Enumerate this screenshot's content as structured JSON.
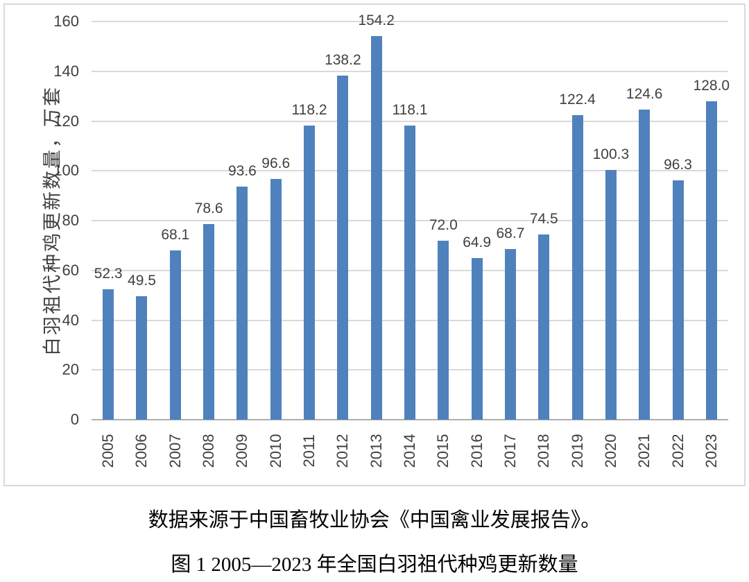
{
  "captions": {
    "source": "数据来源于中国畜牧业协会《中国禽业发展报告》。",
    "figure": "图 1 2005—2023 年全国白羽祖代种鸡更新数量"
  },
  "colors": {
    "bar": "#4F81BD",
    "gridline": "#D9D9D9",
    "baseline": "#ADADAD",
    "tick_text": "#404040",
    "frame_border": "#D9D9D9",
    "background": "#FFFFFF"
  },
  "chart_data": {
    "type": "bar",
    "title": "",
    "xlabel": "",
    "ylabel": "白羽祖代种鸡更新数量，万套",
    "categories": [
      "2005",
      "2006",
      "2007",
      "2008",
      "2009",
      "2010",
      "2011",
      "2012",
      "2013",
      "2014",
      "2015",
      "2016",
      "2017",
      "2018",
      "2019",
      "2020",
      "2021",
      "2022",
      "2023"
    ],
    "values": [
      52.3,
      49.5,
      68.1,
      78.6,
      93.6,
      96.6,
      118.2,
      138.2,
      154.2,
      118.1,
      72.0,
      64.9,
      68.7,
      74.5,
      122.4,
      100.3,
      124.6,
      96.3,
      128.0
    ],
    "ylim": [
      0,
      160
    ],
    "ytick_step": 20,
    "grid": true,
    "legend": false,
    "data_labels": true,
    "data_label_decimals": 1
  }
}
